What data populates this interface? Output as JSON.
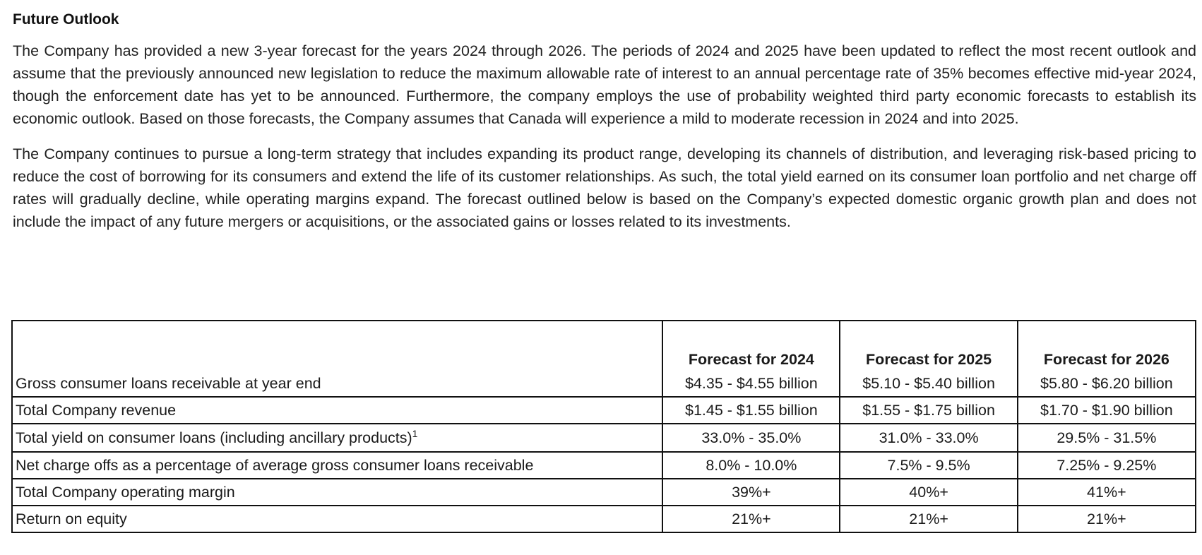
{
  "section": {
    "title": "Future Outlook",
    "paragraphs": [
      "The Company has provided a new 3-year forecast for the years 2024 through 2026. The periods of 2024 and 2025 have been updated to reflect the most recent outlook and assume that the previously announced new legislation to reduce the maximum allowable rate of interest to an annual percentage rate of 35% becomes effective mid-year 2024, though the enforcement date has yet to be announced. Furthermore, the company employs the use of probability weighted third party economic forecasts to establish its economic outlook. Based on those forecasts, the Company assumes that Canada will experience a mild to moderate recession in 2024 and into 2025.",
      "The Company continues to pursue a long-term strategy that includes expanding its product range, developing its channels of distribution, and leveraging risk-based pricing to reduce the cost of borrowing for its consumers and extend the life of its customer relationships. As such, the total yield earned on its consumer loan portfolio and net charge off rates will gradually decline, while operating margins expand. The forecast outlined below is based on the Company’s expected domestic organic growth plan and does not include the impact of any future mergers or acquisitions, or the associated gains or losses related to its investments."
    ]
  },
  "table": {
    "headers": [
      "Forecast for 2024",
      "Forecast for 2025",
      "Forecast for 2026"
    ],
    "rows": [
      {
        "label": "Gross consumer loans receivable at year end",
        "values": [
          "$4.35 - $4.55 billion",
          "$5.10 - $5.40 billion",
          "$5.80 - $6.20 billion"
        ]
      },
      {
        "label": "Total Company revenue",
        "values": [
          "$1.45 - $1.55 billion",
          "$1.55 - $1.75 billion",
          "$1.70 - $1.90 billion"
        ]
      },
      {
        "label": "Total yield on consumer loans (including ancillary products)",
        "footnote": "1",
        "values": [
          "33.0% - 35.0%",
          "31.0% - 33.0%",
          "29.5% - 31.5%"
        ]
      },
      {
        "label": "Net charge offs as a percentage of average gross consumer loans receivable",
        "values": [
          "8.0% - 10.0%",
          "7.5% - 9.5%",
          "7.25% - 9.25%"
        ]
      },
      {
        "label": "Total Company operating margin",
        "values": [
          "39%+",
          "40%+",
          "41%+"
        ]
      },
      {
        "label": "Return on equity",
        "values": [
          "21%+",
          "21%+",
          "21%+"
        ]
      }
    ]
  }
}
